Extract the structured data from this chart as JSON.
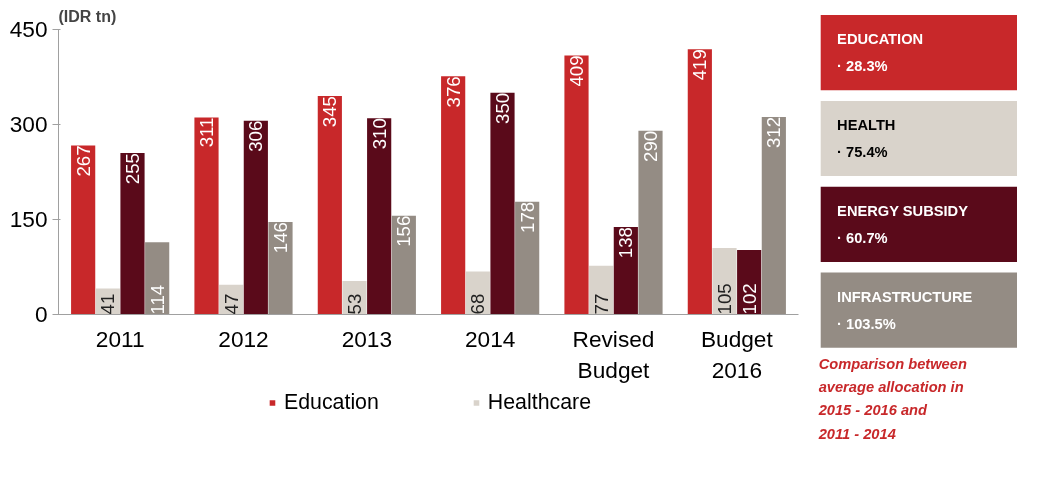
{
  "chart_data": [
    {
      "type": "bar",
      "ylabel": "(IDR tn)",
      "categories": [
        "2011",
        "2012",
        "2013",
        "2014",
        "Revised Budget",
        "Budget 2016"
      ],
      "series": [
        {
          "name": "Education",
          "color": "#c8282a",
          "values": [
            267,
            311,
            345,
            376,
            409,
            419
          ]
        },
        {
          "name": "Healthcare",
          "color": "#d9d3cb",
          "values": [
            41,
            47,
            53,
            68,
            77,
            105
          ]
        },
        {
          "color": "#5a0a1a",
          "values": [
            255,
            306,
            310,
            350,
            138,
            102
          ]
        },
        {
          "color": "#948c84",
          "values": [
            114,
            146,
            156,
            178,
            290,
            312
          ]
        }
      ],
      "ylim": [
        0,
        450
      ],
      "yticks": [
        0,
        150,
        300,
        450
      ],
      "grid": false,
      "legend": "bottom",
      "data_labels": true
    },
    {
      "type": "other",
      "colors": [
        "#c8282a",
        "#d9d3cb",
        "#5a0a1a",
        "#948c84"
      ],
      "annotations": [
        "EDUCATION",
        "·  28.3%",
        "HEALTH",
        "·  75.4%",
        "ENERGY SUBSIDY",
        "·  60.7%",
        "INFRASTRUCTURE",
        "·  103.5%",
        "Comparison between average allocation in 2015 - 2016 and 2011 - 2014"
      ]
    }
  ]
}
